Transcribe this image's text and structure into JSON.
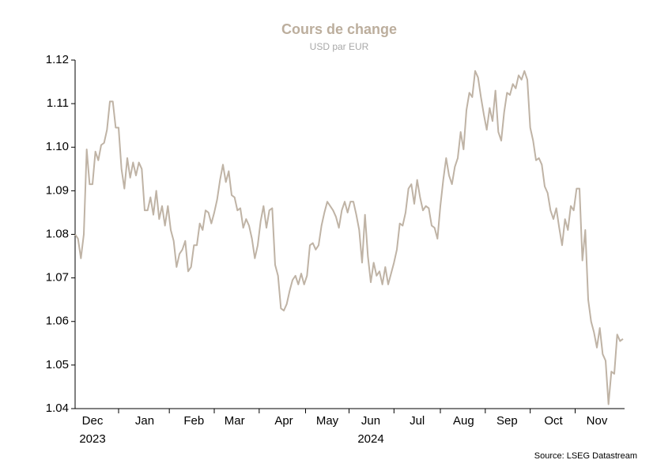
{
  "chart_data": {
    "type": "line",
    "title": "Cours de change",
    "subtitle": "USD par EUR",
    "source": "Source: LSEG Datastream",
    "x_year_labels": [
      "2023",
      "2024"
    ],
    "ylim": [
      1.04,
      1.12
    ],
    "yticks": [
      1.04,
      1.05,
      1.06,
      1.07,
      1.08,
      1.09,
      {
        "value": 1.1,
        "label": "1.10"
      },
      1.11,
      1.12
    ],
    "grid": false,
    "categories": [
      null,
      null,
      null,
      null,
      null,
      null,
      "Dec",
      null,
      null,
      null,
      null,
      null,
      null,
      null,
      null,
      null,
      null,
      null,
      null,
      null,
      null,
      null,
      null,
      null,
      "Jan",
      null,
      null,
      null,
      null,
      null,
      null,
      null,
      null,
      null,
      null,
      null,
      null,
      null,
      null,
      null,
      null,
      "Feb",
      null,
      null,
      null,
      null,
      null,
      null,
      null,
      null,
      null,
      null,
      null,
      null,
      null,
      "Mar",
      null,
      null,
      null,
      null,
      null,
      null,
      null,
      null,
      null,
      null,
      null,
      null,
      null,
      null,
      null,
      null,
      "Apr",
      null,
      null,
      null,
      null,
      null,
      null,
      null,
      null,
      null,
      null,
      null,
      null,
      null,
      null,
      "May",
      null,
      null,
      null,
      null,
      null,
      null,
      null,
      null,
      null,
      null,
      null,
      null,
      null,
      null,
      "Jun",
      null,
      null,
      null,
      null,
      null,
      null,
      null,
      null,
      null,
      null,
      null,
      null,
      null,
      null,
      null,
      "Jul",
      null,
      null,
      null,
      null,
      null,
      null,
      null,
      null,
      null,
      null,
      null,
      null,
      null,
      null,
      null,
      "Aug",
      null,
      null,
      null,
      null,
      null,
      null,
      null,
      null,
      null,
      null,
      null,
      null,
      null,
      null,
      "Sep",
      null,
      null,
      null,
      null,
      null,
      null,
      null,
      null,
      null,
      null,
      null,
      null,
      null,
      null,
      null,
      "Oct",
      null,
      null,
      null,
      null,
      null,
      null,
      null,
      null,
      null,
      null,
      null,
      null,
      null,
      null,
      "Nov",
      null,
      null,
      null,
      null,
      null,
      null,
      null,
      null,
      null
    ],
    "series": [
      {
        "color": "#bfb3a5",
        "values": [
          1.08,
          1.079,
          1.0745,
          1.08,
          1.0995,
          1.0915,
          1.0915,
          1.099,
          1.097,
          1.1005,
          1.101,
          1.104,
          1.1105,
          1.1105,
          1.1045,
          1.1045,
          1.095,
          1.0905,
          1.0975,
          1.093,
          1.0965,
          1.0935,
          1.0965,
          1.095,
          1.0855,
          1.0855,
          1.0885,
          1.0845,
          1.09,
          1.0835,
          1.0865,
          1.082,
          1.0865,
          1.081,
          1.0785,
          1.0725,
          1.0755,
          1.0765,
          1.0785,
          1.0715,
          1.0725,
          1.0775,
          1.0775,
          1.0825,
          1.081,
          1.0855,
          1.085,
          1.0825,
          1.085,
          1.088,
          1.0925,
          1.096,
          1.092,
          1.0945,
          1.089,
          1.0885,
          1.0855,
          1.086,
          1.0815,
          1.0835,
          1.082,
          1.079,
          1.0745,
          1.0775,
          1.083,
          1.0865,
          1.0815,
          1.0855,
          1.086,
          1.073,
          1.0705,
          1.063,
          1.0625,
          1.064,
          1.067,
          1.0695,
          1.0705,
          1.0685,
          1.071,
          1.0685,
          1.0705,
          1.0775,
          1.078,
          1.0765,
          1.0775,
          1.082,
          1.085,
          1.0875,
          1.0865,
          1.0855,
          1.084,
          1.0815,
          1.0855,
          1.0875,
          1.085,
          1.0875,
          1.0875,
          1.0845,
          1.081,
          1.0735,
          1.0845,
          1.075,
          1.069,
          1.0735,
          1.0705,
          1.0715,
          1.0685,
          1.0725,
          1.0685,
          1.071,
          1.0735,
          1.0765,
          1.0825,
          1.082,
          1.085,
          1.0905,
          1.0915,
          1.087,
          1.0925,
          1.0885,
          1.0855,
          1.0865,
          1.086,
          1.082,
          1.0815,
          1.079,
          1.0865,
          1.0925,
          1.0975,
          1.0935,
          1.0915,
          1.0955,
          1.0975,
          1.1035,
          1.0995,
          1.1085,
          1.1125,
          1.1115,
          1.1175,
          1.116,
          1.1115,
          1.1075,
          1.104,
          1.109,
          1.106,
          1.113,
          1.1035,
          1.1015,
          1.108,
          1.1125,
          1.112,
          1.1145,
          1.1135,
          1.1165,
          1.1155,
          1.1175,
          1.1155,
          1.1045,
          1.1015,
          1.097,
          1.0975,
          1.096,
          1.091,
          1.0895,
          1.0855,
          1.0835,
          1.086,
          1.0815,
          1.0775,
          1.0835,
          1.081,
          1.0865,
          1.0855,
          1.0905,
          1.0905,
          1.074,
          1.081,
          1.065,
          1.06,
          1.0575,
          1.054,
          1.0585,
          1.0525,
          1.051,
          1.041,
          1.0485,
          1.048,
          1.057,
          1.0555,
          1.056
        ]
      }
    ]
  }
}
